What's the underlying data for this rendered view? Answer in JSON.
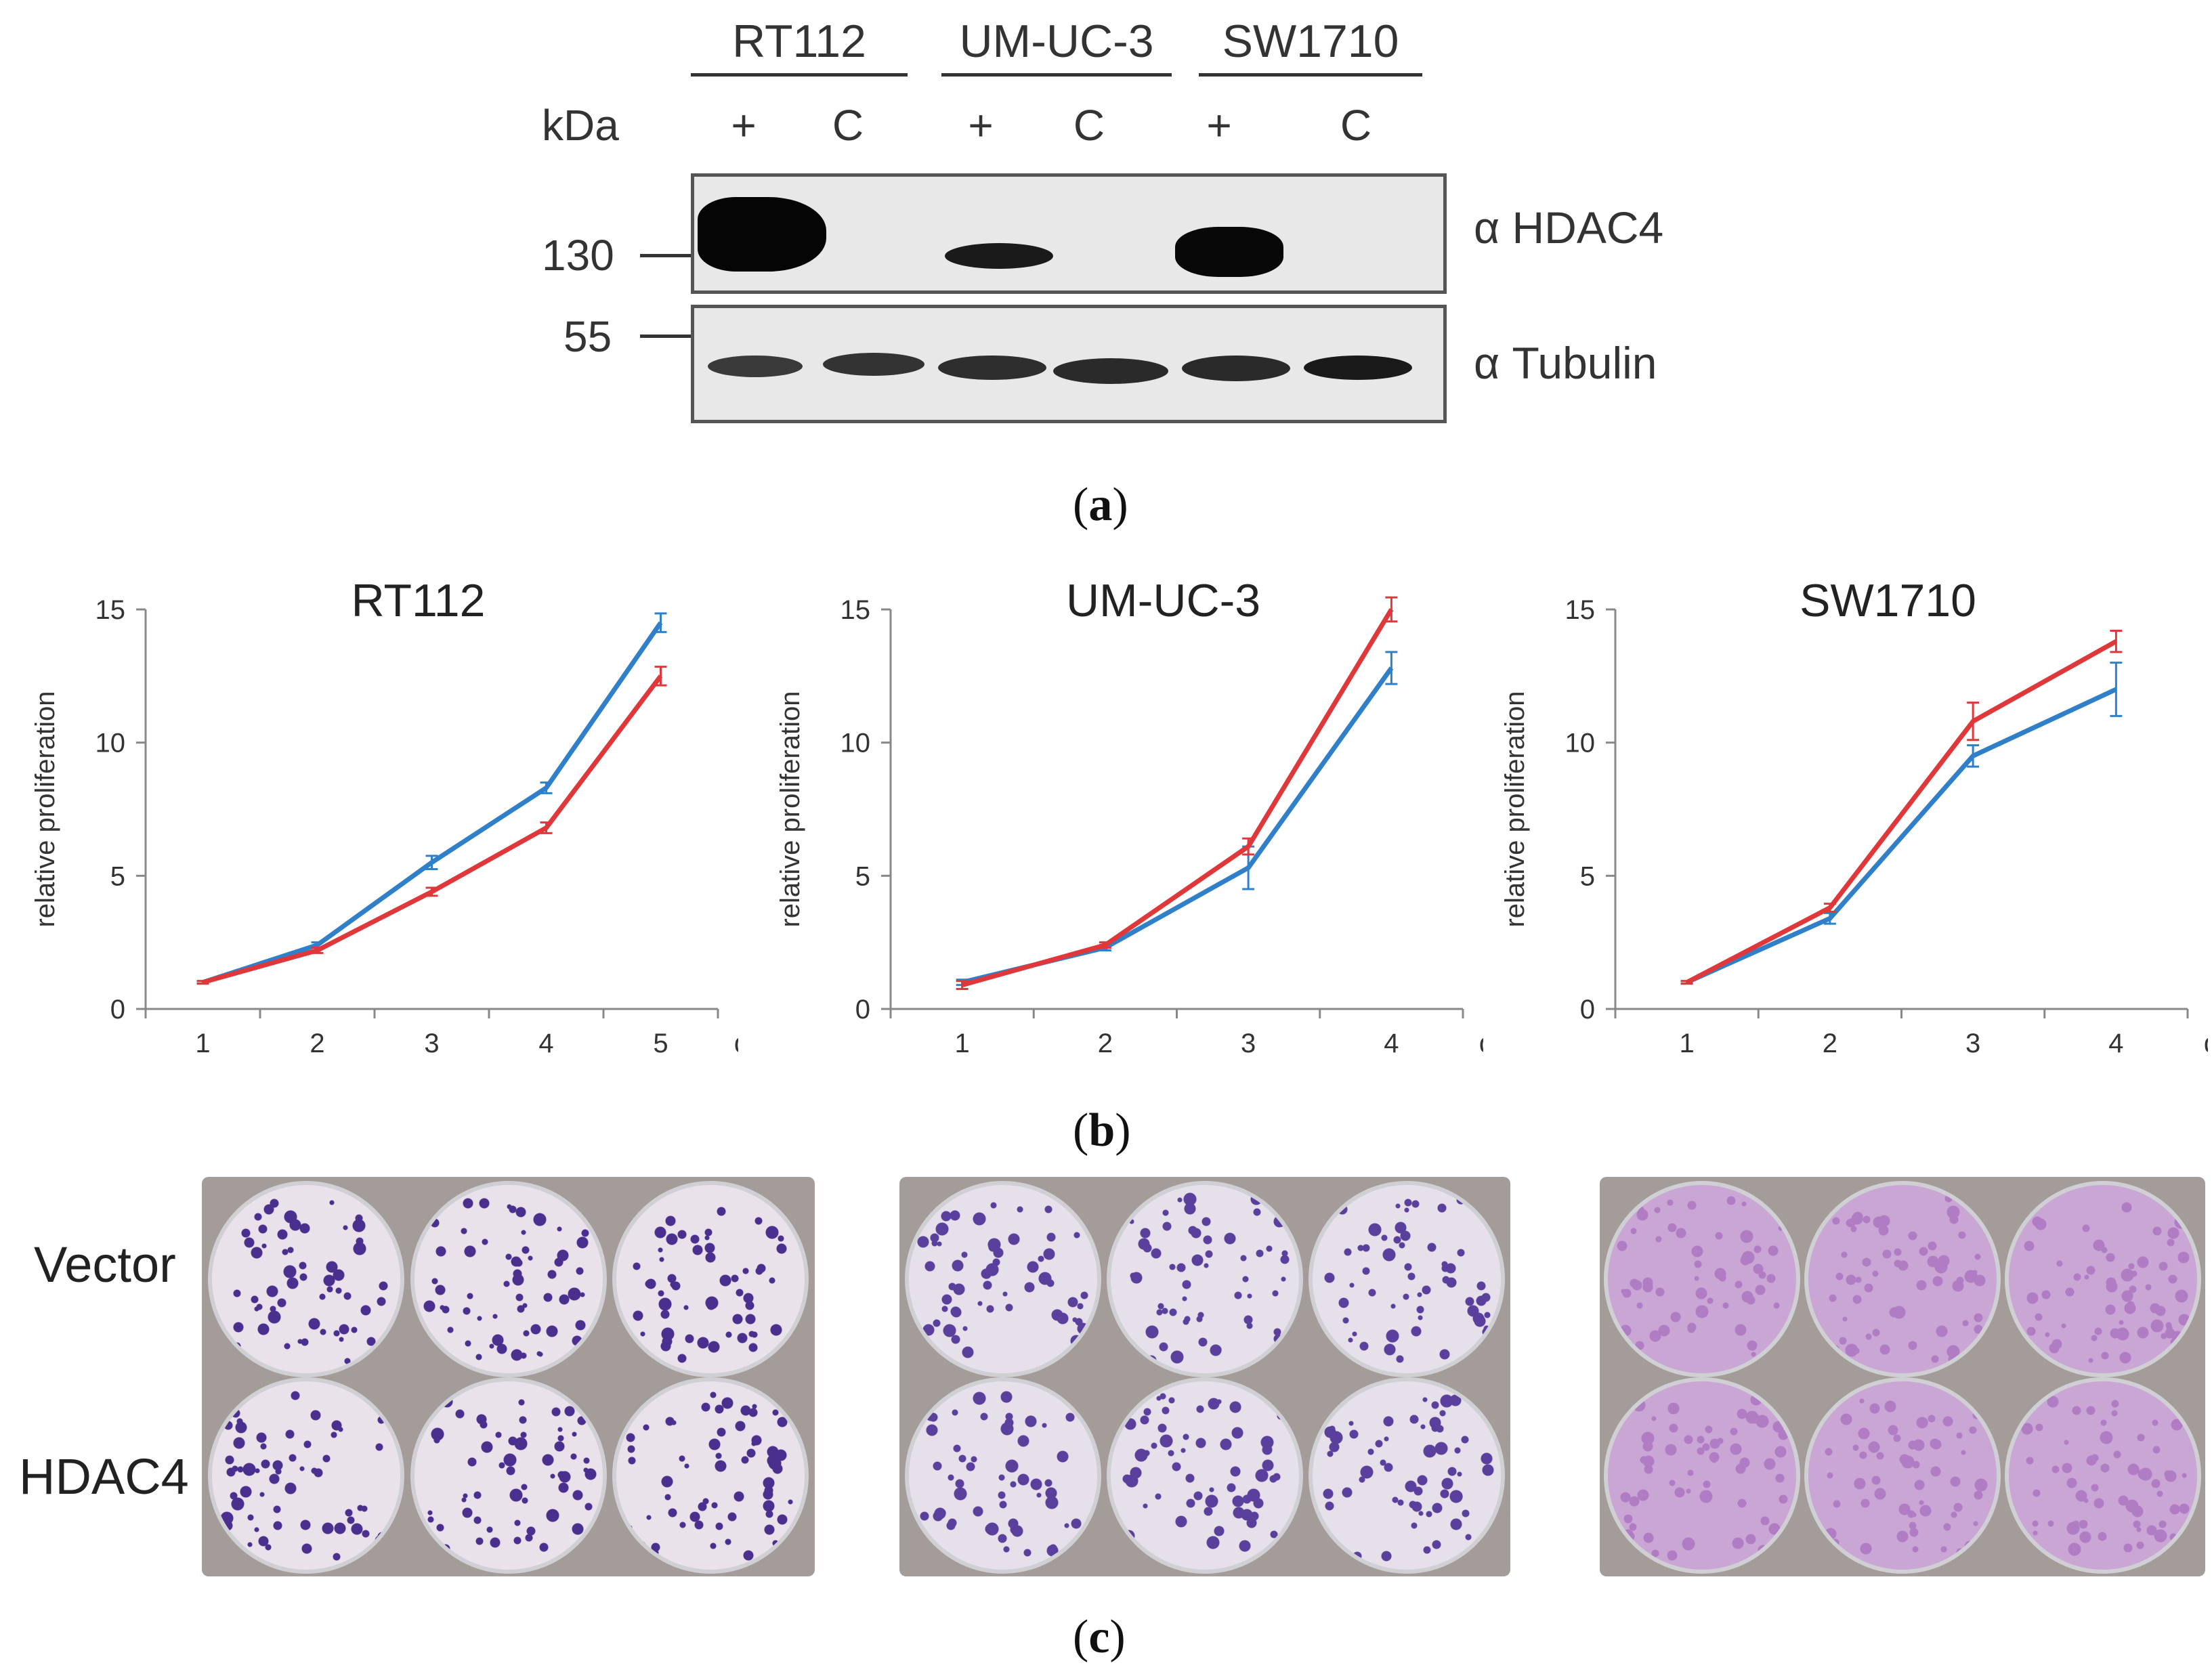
{
  "figure": {
    "panel_a": {
      "letter": "a",
      "kda_label": "kDa",
      "cell_lines": [
        "RT112",
        "UM-UC-3",
        "SW1710"
      ],
      "lane_labels": [
        "+",
        "C",
        "+",
        "C",
        "+",
        "C"
      ],
      "mw_markers": [
        "130",
        "55"
      ],
      "antibodies": [
        "α HDAC4",
        "α Tubulin"
      ]
    },
    "panel_b": {
      "letter": "b"
    },
    "panel_c": {
      "letter": "c",
      "row_labels": [
        "Vector",
        "HDAC4"
      ]
    }
  },
  "chart_data": [
    {
      "type": "line",
      "title": "RT112",
      "xlabel": "d",
      "ylabel": "relative proliferation",
      "x": [
        1,
        2,
        3,
        4,
        5
      ],
      "xlim": [
        0.5,
        5.5
      ],
      "ylim": [
        0,
        15
      ],
      "yticks": [
        0,
        5,
        10,
        15
      ],
      "series": [
        {
          "name": "blue",
          "color": "#2f80c8",
          "values": [
            1.0,
            2.4,
            5.5,
            8.3,
            14.5
          ],
          "errors": [
            0.05,
            0.1,
            0.25,
            0.2,
            0.35
          ]
        },
        {
          "name": "red",
          "color": "#e0383a",
          "values": [
            1.0,
            2.2,
            4.4,
            6.8,
            12.5
          ],
          "errors": [
            0.05,
            0.1,
            0.15,
            0.2,
            0.35
          ]
        }
      ]
    },
    {
      "type": "line",
      "title": "UM-UC-3",
      "xlabel": "d",
      "ylabel": "relative proliferation",
      "x": [
        1,
        2,
        3,
        4
      ],
      "xlim": [
        0.5,
        4.5
      ],
      "ylim": [
        0,
        15
      ],
      "yticks": [
        0,
        5,
        10,
        15
      ],
      "series": [
        {
          "name": "blue",
          "color": "#2f80c8",
          "values": [
            1.0,
            2.3,
            5.3,
            12.8
          ],
          "errors": [
            0.1,
            0.1,
            0.8,
            0.6
          ]
        },
        {
          "name": "red",
          "color": "#e0383a",
          "values": [
            0.9,
            2.4,
            6.1,
            15.0
          ],
          "errors": [
            0.15,
            0.1,
            0.3,
            0.45
          ]
        }
      ]
    },
    {
      "type": "line",
      "title": "SW1710",
      "xlabel": "d",
      "ylabel": "relative proliferation",
      "x": [
        1,
        2,
        3,
        4
      ],
      "xlim": [
        0.5,
        4.5
      ],
      "ylim": [
        0,
        15
      ],
      "yticks": [
        0,
        5,
        10,
        15
      ],
      "series": [
        {
          "name": "blue",
          "color": "#2f80c8",
          "values": [
            1.0,
            3.4,
            9.5,
            12.0
          ],
          "errors": [
            0.05,
            0.2,
            0.4,
            1.0
          ]
        },
        {
          "name": "red",
          "color": "#e0383a",
          "values": [
            1.0,
            3.8,
            10.8,
            13.8
          ],
          "errors": [
            0.05,
            0.15,
            0.7,
            0.4
          ]
        }
      ]
    }
  ]
}
